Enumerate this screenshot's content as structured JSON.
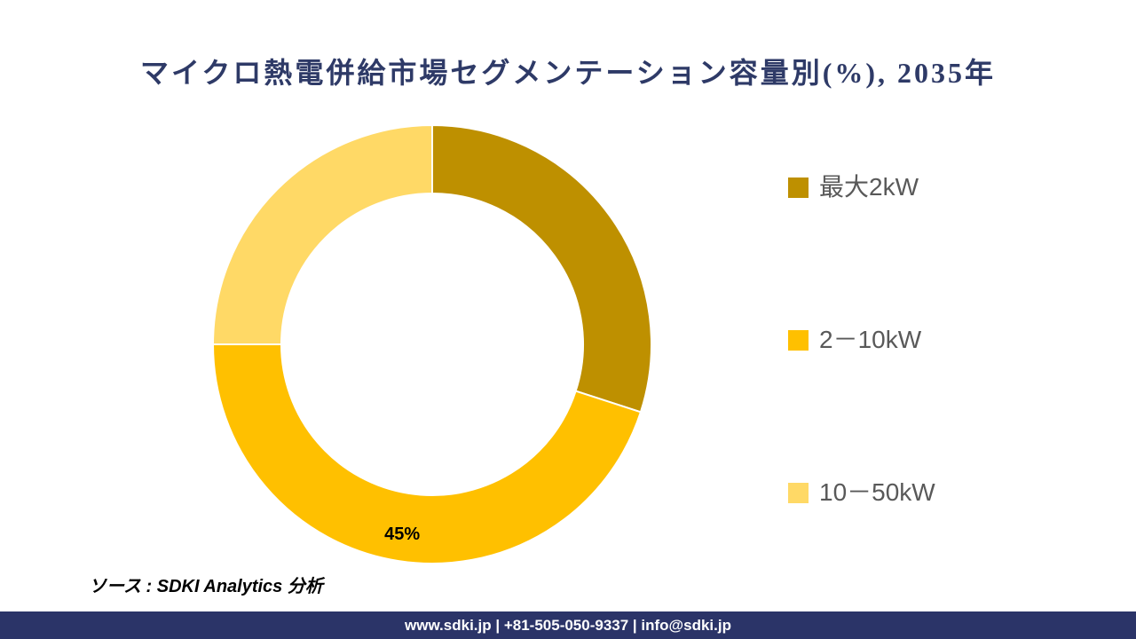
{
  "title": "マイクロ熱電併給市場セグメンテーション容量別(%), 2035年",
  "chart_data": {
    "type": "pie",
    "subtype": "donut",
    "title": "マイクロ熱電併給市場セグメンテーション容量別(%), 2035年",
    "categories": [
      "最大2kW",
      "2－10kW",
      "10－50kW"
    ],
    "values": [
      30,
      45,
      25
    ],
    "unit": "%",
    "colors": [
      "#BE9000",
      "#FFC000",
      "#FFD966"
    ],
    "start_angle_deg": 0,
    "direction": "clockwise",
    "inner_radius_ratio": 0.69,
    "separator_color": "#FFFFFF",
    "data_labels": [
      {
        "slice_index": 1,
        "text": "45%"
      }
    ],
    "legend_position": "right"
  },
  "legend": {
    "items": [
      {
        "label": "最大2kW",
        "color": "#BE9000"
      },
      {
        "label": "2－10kW",
        "color": "#FFC000"
      },
      {
        "label": "10－50kW",
        "color": "#FFD966"
      }
    ]
  },
  "source_note": "ソース : SDKI Analytics 分析",
  "footer": {
    "text": "www.sdki.jp | +81-505-050-9337 | info@sdki.jp",
    "background": "#2B3468"
  },
  "theme": {
    "title_color": "#2E3A67",
    "legend_text_color": "#595959",
    "data_label_color": "#000000",
    "background": "#FFFFFF"
  }
}
